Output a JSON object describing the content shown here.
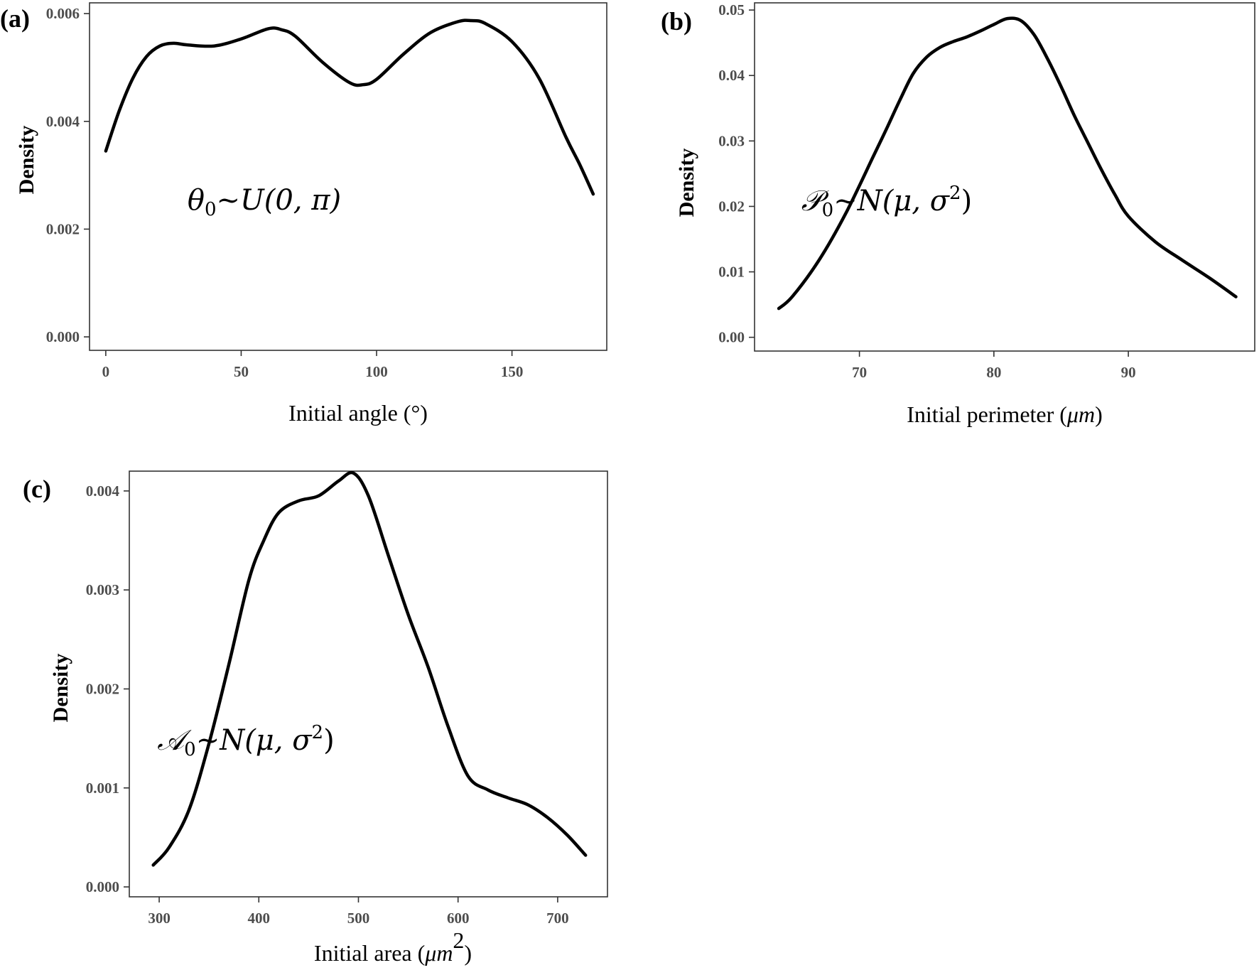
{
  "chart_data": [
    {
      "type": "line",
      "panel_label": "(a)",
      "ylabel": "Density",
      "xlabel": "Initial angle (°)",
      "annotation": {
        "main": "θ",
        "sub": "0",
        "rest": "~U(0, π)"
      },
      "xlim": [
        -6,
        185
      ],
      "ylim": [
        -0.00025,
        0.0062
      ],
      "xticks": [
        0,
        50,
        100,
        150
      ],
      "xtick_labels": [
        "0",
        "50",
        "100",
        "150"
      ],
      "yticks": [
        0,
        0.002,
        0.004,
        0.006
      ],
      "ytick_labels": [
        "0.000",
        "0.002",
        "0.004",
        "0.006"
      ],
      "grid": false,
      "series": [
        {
          "x": [
            0,
            5,
            10,
            15,
            20,
            25,
            30,
            40,
            50,
            60,
            65,
            70,
            80,
            90,
            95,
            100,
            110,
            120,
            130,
            135,
            140,
            150,
            160,
            170,
            175,
            180
          ],
          "y": [
            0.00345,
            0.0042,
            0.0048,
            0.0052,
            0.0054,
            0.00545,
            0.00542,
            0.0054,
            0.00553,
            0.00572,
            0.0057,
            0.00558,
            0.0051,
            0.00472,
            0.00468,
            0.00478,
            0.00525,
            0.00565,
            0.00585,
            0.00587,
            0.00582,
            0.00548,
            0.0048,
            0.0037,
            0.0032,
            0.00265
          ]
        }
      ]
    },
    {
      "type": "line",
      "panel_label": "(b)",
      "ylabel": "Density",
      "xlabel": "Initial perimeter (",
      "xlabel_unit": "μm",
      "xlabel_close": ")",
      "annotation": {
        "main": "𝒫",
        "sub": "0",
        "rest": "~N(μ, σ",
        "sup": "2",
        "close": ")"
      },
      "xlim": [
        62.2,
        99.4
      ],
      "ylim": [
        -0.0021,
        0.0511
      ],
      "xticks": [
        70,
        80,
        90
      ],
      "xtick_labels": [
        "70",
        "80",
        "90"
      ],
      "yticks": [
        0,
        0.01,
        0.02,
        0.03,
        0.04,
        0.05
      ],
      "ytick_labels": [
        "0.00",
        "0.01",
        "0.02",
        "0.03",
        "0.04",
        "0.05"
      ],
      "grid": false,
      "series": [
        {
          "x": [
            64,
            65,
            67,
            69,
            71,
            72,
            73,
            74,
            75,
            76,
            77,
            78,
            79,
            80,
            81,
            82,
            83,
            84,
            85,
            86,
            87,
            88,
            89,
            90,
            92,
            94,
            96,
            98
          ],
          "y": [
            0.0044,
            0.0062,
            0.0118,
            0.019,
            0.0275,
            0.0318,
            0.0362,
            0.0403,
            0.0428,
            0.0443,
            0.0452,
            0.0459,
            0.0468,
            0.0478,
            0.0487,
            0.0484,
            0.0462,
            0.0425,
            0.0383,
            0.0338,
            0.0297,
            0.0256,
            0.0218,
            0.0185,
            0.0146,
            0.0118,
            0.0091,
            0.0062
          ]
        }
      ]
    },
    {
      "type": "line",
      "panel_label": "(c)",
      "ylabel": "Density",
      "xlabel": "Initial area (",
      "xlabel_unit": "μm",
      "xlabel_sup": "2",
      "xlabel_close": ")",
      "annotation": {
        "main": "𝒜",
        "sub": "0",
        "rest": "~N(μ, σ",
        "sup": "2",
        "close": ")"
      },
      "xlim": [
        270,
        750
      ],
      "ylim": [
        -0.0001,
        0.0042
      ],
      "xticks": [
        300,
        400,
        500,
        600,
        700
      ],
      "xtick_labels": [
        "300",
        "400",
        "500",
        "600",
        "700"
      ],
      "yticks": [
        0,
        0.001,
        0.002,
        0.003,
        0.004
      ],
      "ytick_labels": [
        "0.000",
        "0.001",
        "0.002",
        "0.003",
        "0.004"
      ],
      "grid": false,
      "series": [
        {
          "x": [
            294,
            310,
            330,
            350,
            370,
            390,
            405,
            420,
            440,
            460,
            480,
            495,
            510,
            530,
            550,
            570,
            590,
            610,
            630,
            650,
            670,
            690,
            710,
            728
          ],
          "y": [
            0.00022,
            0.0004,
            0.00078,
            0.00145,
            0.00225,
            0.0031,
            0.0035,
            0.00378,
            0.0039,
            0.00395,
            0.0041,
            0.00418,
            0.00395,
            0.00335,
            0.00275,
            0.00222,
            0.00162,
            0.00112,
            0.00098,
            0.0009,
            0.00083,
            0.0007,
            0.00052,
            0.00032
          ]
        }
      ]
    }
  ]
}
